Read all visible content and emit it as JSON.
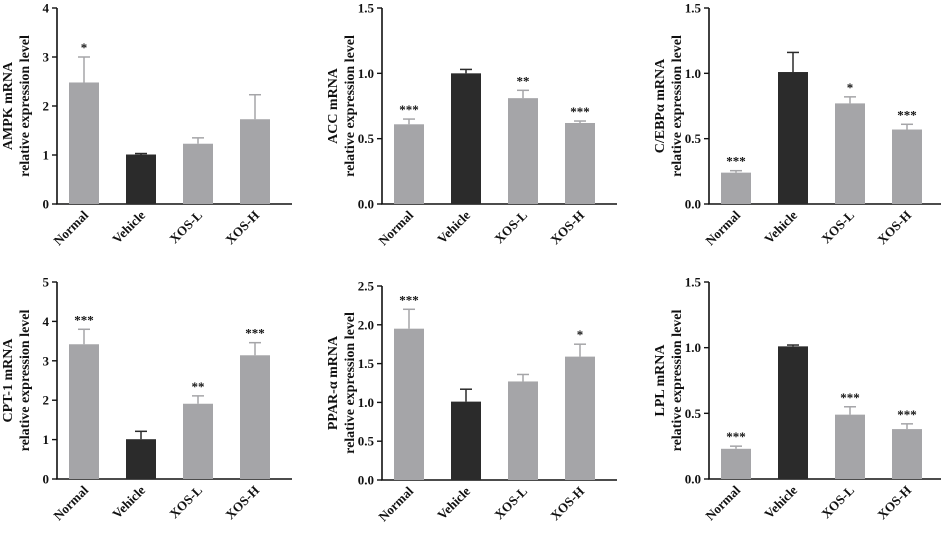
{
  "figure": {
    "categories": [
      "Normal",
      "Vehicle",
      "XOS-L",
      "XOS-H"
    ],
    "colors": {
      "gray_bar": "#a5a5a8",
      "dark_bar": "#2b2b2b",
      "axis": "#111111",
      "text": "#111111"
    }
  },
  "chart_data": [
    {
      "type": "bar",
      "title": "",
      "ylabel": [
        "AMPK mRNA",
        "relative expression level"
      ],
      "categories": [
        "Normal",
        "Vehicle",
        "XOS-L",
        "XOS-H"
      ],
      "values": [
        2.48,
        1.01,
        1.23,
        1.73
      ],
      "errors": [
        0.52,
        0.02,
        0.12,
        0.5
      ],
      "significance": [
        "*",
        "",
        "",
        ""
      ],
      "bar_fill": [
        "gray",
        "dark",
        "gray",
        "gray"
      ],
      "ylim": [
        0,
        4
      ],
      "yticks": [
        0,
        1,
        2,
        3,
        4
      ],
      "ytick_labels": [
        "0",
        "1",
        "2",
        "3",
        "4"
      ]
    },
    {
      "type": "bar",
      "title": "",
      "ylabel": [
        "ACC mRNA",
        "relative expression level"
      ],
      "categories": [
        "Normal",
        "Vehicle",
        "XOS-L",
        "XOS-H"
      ],
      "values": [
        0.61,
        1.0,
        0.81,
        0.62
      ],
      "errors": [
        0.04,
        0.03,
        0.06,
        0.015
      ],
      "significance": [
        "***",
        "",
        "**",
        "***"
      ],
      "bar_fill": [
        "gray",
        "dark",
        "gray",
        "gray"
      ],
      "ylim": [
        0,
        1.5
      ],
      "yticks": [
        0,
        0.5,
        1.0,
        1.5
      ],
      "ytick_labels": [
        "0.0",
        "0.5",
        "1.0",
        "1.5"
      ]
    },
    {
      "type": "bar",
      "title": "",
      "ylabel": [
        "C/EBPα mRNA",
        "relative expression level"
      ],
      "categories": [
        "Normal",
        "Vehicle",
        "XOS-L",
        "XOS-H"
      ],
      "values": [
        0.24,
        1.01,
        0.77,
        0.57
      ],
      "errors": [
        0.015,
        0.15,
        0.05,
        0.04
      ],
      "significance": [
        "***",
        "",
        "*",
        "***"
      ],
      "bar_fill": [
        "gray",
        "dark",
        "gray",
        "gray"
      ],
      "ylim": [
        0,
        1.5
      ],
      "yticks": [
        0,
        0.5,
        1.0,
        1.5
      ],
      "ytick_labels": [
        "0.0",
        "0.5",
        "1.0",
        "1.5"
      ]
    },
    {
      "type": "bar",
      "title": "",
      "ylabel": [
        "CPT-1 mRNA",
        "relative expression level"
      ],
      "categories": [
        "Normal",
        "Vehicle",
        "XOS-L",
        "XOS-H"
      ],
      "values": [
        3.42,
        1.01,
        1.91,
        3.14
      ],
      "errors": [
        0.38,
        0.2,
        0.2,
        0.32
      ],
      "significance": [
        "***",
        "",
        "**",
        "***"
      ],
      "bar_fill": [
        "gray",
        "dark",
        "gray",
        "gray"
      ],
      "ylim": [
        0,
        5
      ],
      "yticks": [
        0,
        1,
        2,
        3,
        4,
        5
      ],
      "ytick_labels": [
        "0",
        "1",
        "2",
        "3",
        "4",
        "5"
      ]
    },
    {
      "type": "bar",
      "title": "",
      "ylabel": [
        "PPAR-α mRNA",
        "relative expression level"
      ],
      "categories": [
        "Normal",
        "Vehicle",
        "XOS-L",
        "XOS-H"
      ],
      "values": [
        1.95,
        1.01,
        1.27,
        1.59
      ],
      "errors": [
        0.25,
        0.16,
        0.09,
        0.16
      ],
      "significance": [
        "***",
        "",
        "",
        "*"
      ],
      "bar_fill": [
        "gray",
        "dark",
        "gray",
        "gray"
      ],
      "ylim": [
        0,
        2.5
      ],
      "yticks": [
        0,
        0.5,
        1.0,
        1.5,
        2.0,
        2.5
      ],
      "ytick_labels": [
        "0.0",
        "0.5",
        "1.0",
        "1.5",
        "2.0",
        "2.5"
      ]
    },
    {
      "type": "bar",
      "title": "",
      "ylabel": [
        "LPL mRNA",
        "relative expression level"
      ],
      "categories": [
        "Normal",
        "Vehicle",
        "XOS-L",
        "XOS-H"
      ],
      "values": [
        0.23,
        1.01,
        0.49,
        0.38
      ],
      "errors": [
        0.02,
        0.01,
        0.06,
        0.04
      ],
      "significance": [
        "***",
        "",
        "***",
        "***"
      ],
      "bar_fill": [
        "gray",
        "dark",
        "gray",
        "gray"
      ],
      "ylim": [
        0,
        1.5
      ],
      "yticks": [
        0,
        0.5,
        1.0,
        1.5
      ],
      "ytick_labels": [
        "0.0",
        "0.5",
        "1.0",
        "1.5"
      ]
    }
  ]
}
